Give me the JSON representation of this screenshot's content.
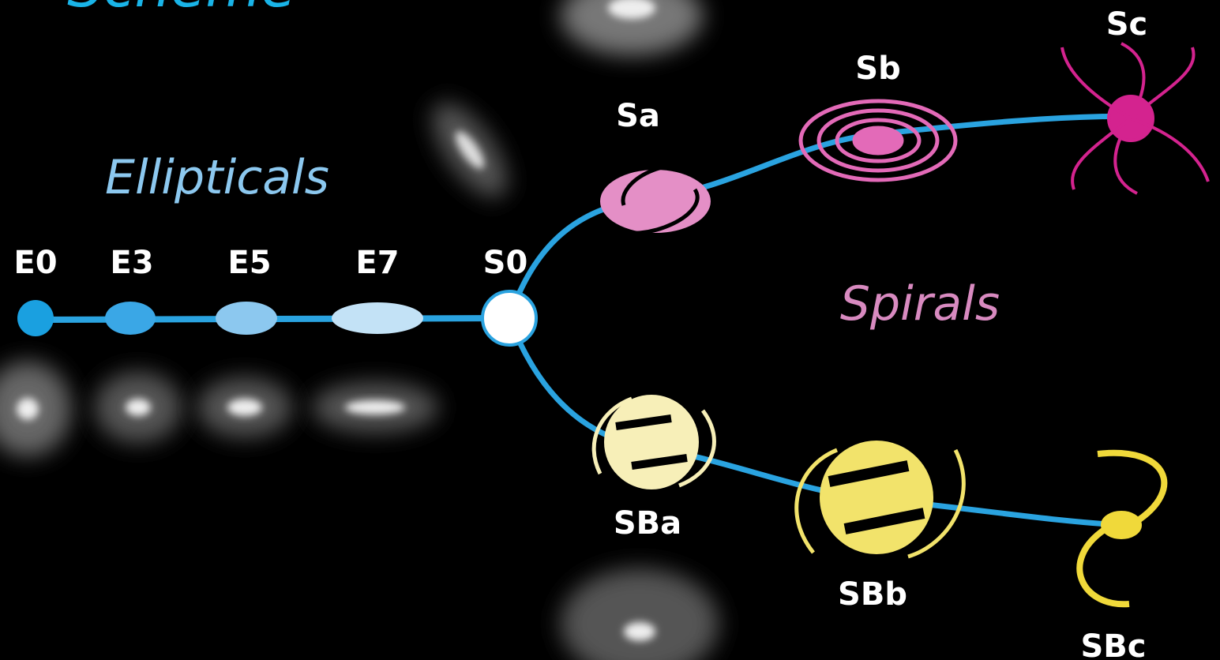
{
  "title": "Scheme",
  "groups": {
    "ellipticals": "Ellipticals",
    "spirals": "Spirals"
  },
  "nodes": [
    {
      "label": "E0"
    },
    {
      "label": "E3"
    },
    {
      "label": "E5"
    },
    {
      "label": "E7"
    },
    {
      "label": "S0"
    },
    {
      "label": "Sa"
    },
    {
      "label": "Sb"
    },
    {
      "label": "Sc"
    },
    {
      "label": "SBa"
    },
    {
      "label": "SBb"
    },
    {
      "label": "SBc"
    }
  ]
}
